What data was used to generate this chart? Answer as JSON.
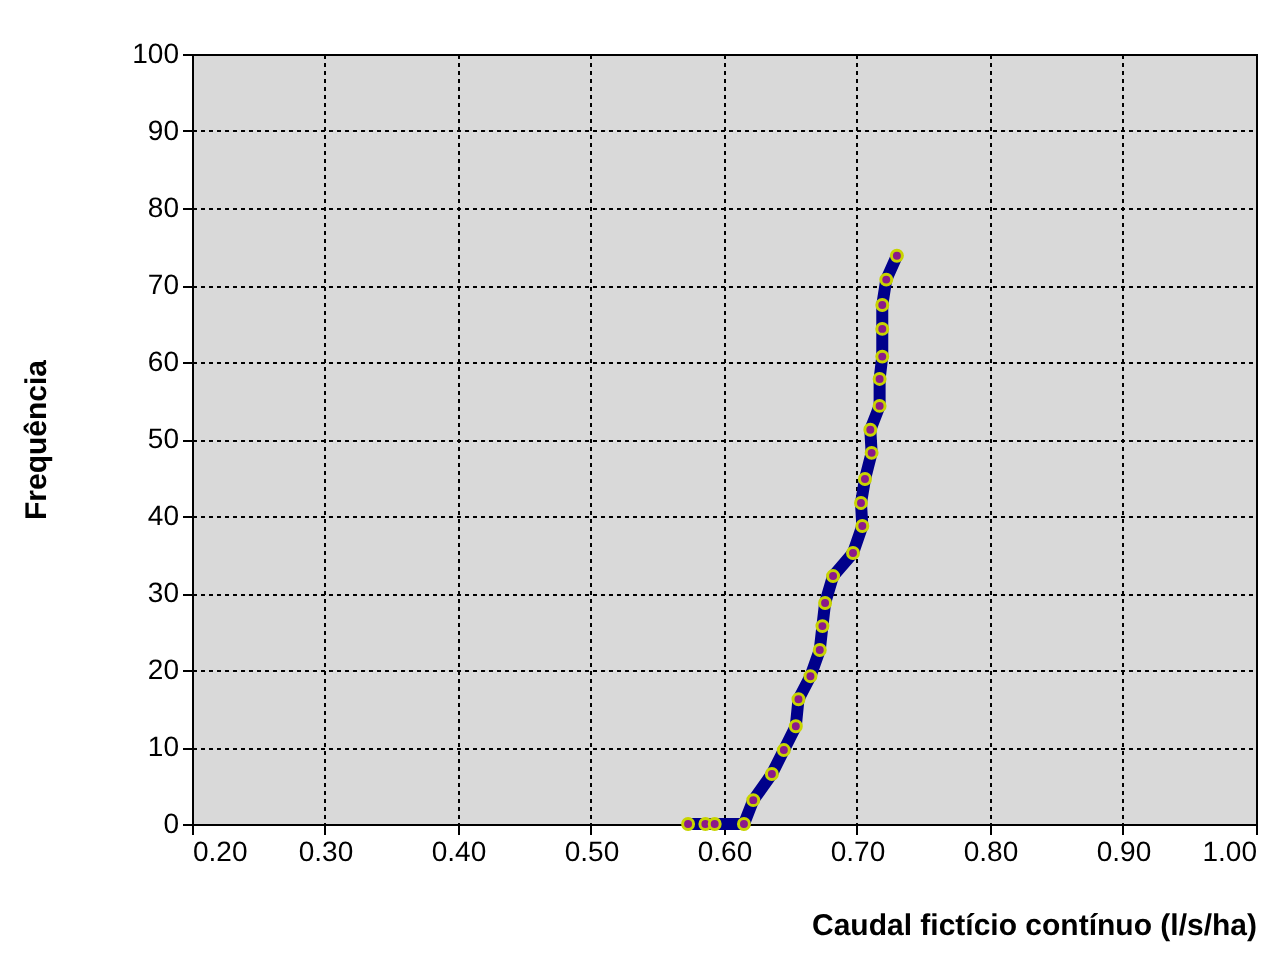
{
  "chart_data": {
    "type": "line",
    "xlabel": "Caudal fictício contínuo (l/s/ha)",
    "ylabel": "Frequência",
    "series": [
      {
        "color": "#00008b",
        "x": [
          0.573,
          0.586,
          0.593,
          0.615,
          0.622,
          0.636,
          0.645,
          0.654,
          0.656,
          0.665,
          0.672,
          0.674,
          0.676,
          0.682,
          0.697,
          0.704,
          0.703,
          0.706,
          0.711,
          0.71,
          0.717,
          0.717,
          0.719,
          0.719,
          0.719,
          0.722,
          0.73
        ],
        "values": [
          0,
          0,
          0,
          0,
          3.1,
          6.5,
          9.6,
          12.7,
          16.2,
          19.2,
          22.6,
          25.7,
          28.7,
          32.2,
          35.2,
          38.7,
          41.7,
          44.8,
          48.2,
          51.2,
          54.3,
          57.8,
          60.7,
          64.3,
          67.4,
          70.7,
          73.8
        ]
      }
    ],
    "marker": "circle",
    "line_style": "solid",
    "grid": true,
    "xlim": [
      0.2,
      1.0
    ],
    "xticks": [
      {
        "value": 0.2,
        "label": "0.20"
      },
      {
        "value": 0.3,
        "label": "0.30"
      },
      {
        "value": 0.4,
        "label": "0.40"
      },
      {
        "value": 0.5,
        "label": "0.50"
      },
      {
        "value": 0.6,
        "label": "0.60"
      },
      {
        "value": 0.7,
        "label": "0.70"
      },
      {
        "value": 0.8,
        "label": "0.80"
      },
      {
        "value": 0.9,
        "label": "0.90"
      },
      {
        "value": 1.0,
        "label": "1.00"
      }
    ],
    "ylim": [
      0,
      100
    ],
    "yticks": [
      0,
      10,
      20,
      30,
      40,
      50,
      60,
      70,
      80,
      90,
      100
    ]
  }
}
